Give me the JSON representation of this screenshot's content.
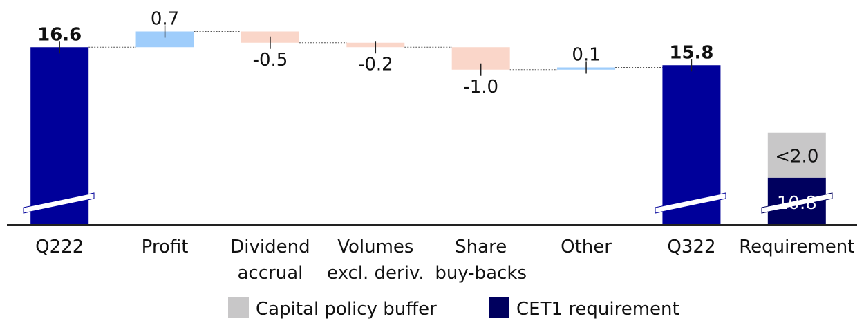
{
  "chart_data": {
    "type": "waterfall",
    "categories": [
      [
        "Q222"
      ],
      [
        "Profit"
      ],
      [
        "Dividend",
        "accrual"
      ],
      [
        "Volumes",
        "excl. deriv."
      ],
      [
        "Share",
        "buy-backs"
      ],
      [
        "Other"
      ],
      [
        "Q322"
      ],
      [
        "Requirement"
      ]
    ],
    "values": [
      16.6,
      0.7,
      -0.5,
      -0.2,
      -1.0,
      0.1,
      15.8,
      null
    ],
    "value_labels": [
      "16.6",
      "0.7",
      "-0.5",
      "-0.2",
      "-1.0",
      "0.1",
      "15.8",
      null
    ],
    "totals": [
      true,
      false,
      false,
      false,
      false,
      false,
      true,
      false
    ],
    "colors": {
      "total": "#00009a",
      "increase": "#9fcdfb",
      "decrease": "#fad6c9"
    },
    "series": [
      {
        "name": "Capital policy buffer",
        "color": "#c8c7c8",
        "values": [
          null,
          null,
          null,
          null,
          null,
          null,
          null,
          2.0
        ],
        "value_labels": [
          null,
          null,
          null,
          null,
          null,
          null,
          null,
          "<2.0"
        ]
      },
      {
        "name": "CET1 requirement",
        "color": "#00005e",
        "values": [
          null,
          null,
          null,
          null,
          null,
          null,
          null,
          10.8
        ]
      }
    ],
    "ylim": [
      8.7,
      17.5
    ]
  }
}
